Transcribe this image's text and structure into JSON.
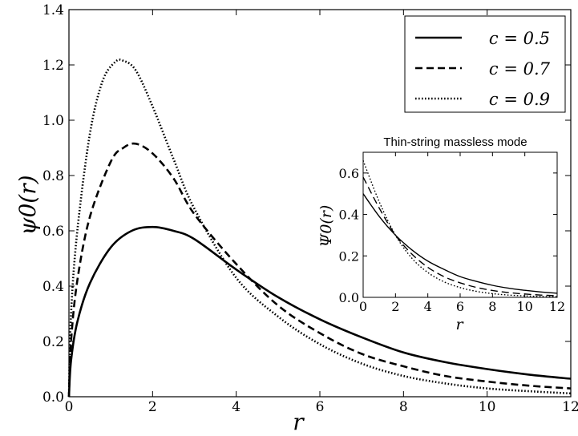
{
  "chart_data": [
    {
      "type": "line",
      "xlabel": "r",
      "ylabel": "ψ0(r)",
      "xlim": [
        0,
        12
      ],
      "ylim": [
        0,
        1.4
      ],
      "xticks": [
        "0",
        "2",
        "4",
        "6",
        "8",
        "10",
        "12"
      ],
      "yticks": [
        "0.0",
        "0.2",
        "0.4",
        "0.6",
        "0.8",
        "1.0",
        "1.2",
        "1.4"
      ],
      "grid": false,
      "legend": "top-right",
      "series": [
        {
          "name": "c = 0.5",
          "style": "solid",
          "x": [
            0,
            0.05,
            0.2,
            0.5,
            1,
            1.5,
            2,
            2.5,
            3,
            4,
            5,
            6,
            7,
            8,
            9,
            10,
            11,
            12
          ],
          "y": [
            0,
            0.13,
            0.27,
            0.41,
            0.54,
            0.6,
            0.614,
            0.6,
            0.57,
            0.46,
            0.36,
            0.28,
            0.215,
            0.16,
            0.125,
            0.1,
            0.08,
            0.065
          ]
        },
        {
          "name": "c = 0.7",
          "style": "dashed",
          "x": [
            0,
            0.05,
            0.2,
            0.5,
            1,
            1.3,
            1.6,
            2,
            2.5,
            3,
            4,
            5,
            6,
            7,
            8,
            9,
            10,
            11,
            12
          ],
          "y": [
            0,
            0.2,
            0.42,
            0.65,
            0.85,
            0.9,
            0.915,
            0.88,
            0.79,
            0.66,
            0.48,
            0.33,
            0.23,
            0.155,
            0.11,
            0.075,
            0.055,
            0.04,
            0.03
          ]
        },
        {
          "name": "c = 0.9",
          "style": "dotted",
          "x": [
            0,
            0.05,
            0.2,
            0.5,
            0.8,
            1.1,
            1.3,
            1.6,
            2,
            2.5,
            3,
            4,
            5,
            6,
            7,
            8,
            9,
            10,
            11,
            12
          ],
          "y": [
            0,
            0.3,
            0.6,
            0.95,
            1.14,
            1.21,
            1.215,
            1.18,
            1.05,
            0.86,
            0.68,
            0.43,
            0.29,
            0.19,
            0.12,
            0.075,
            0.048,
            0.03,
            0.02,
            0.012
          ]
        }
      ]
    },
    {
      "type": "line",
      "title": "Thin-string massless mode",
      "xlabel": "r",
      "ylabel": "Ψ0(r)",
      "xlim": [
        0,
        12
      ],
      "ylim": [
        0,
        0.7
      ],
      "xticks": [
        "0",
        "2",
        "4",
        "6",
        "8",
        "10",
        "12"
      ],
      "yticks": [
        "0.0",
        "0.2",
        "0.4",
        "0.6"
      ],
      "grid": false,
      "series": [
        {
          "style": "solid",
          "x": [
            0,
            1,
            2,
            3,
            4,
            5,
            6,
            7,
            8,
            9,
            10,
            11,
            12
          ],
          "y": [
            0.5,
            0.39,
            0.3,
            0.23,
            0.175,
            0.135,
            0.1,
            0.077,
            0.058,
            0.044,
            0.034,
            0.026,
            0.02
          ]
        },
        {
          "style": "dashed",
          "x": [
            0,
            1,
            2,
            3,
            4,
            5,
            6,
            7,
            8,
            9,
            10,
            11,
            12
          ],
          "y": [
            0.58,
            0.43,
            0.3,
            0.21,
            0.145,
            0.1,
            0.07,
            0.048,
            0.033,
            0.023,
            0.016,
            0.011,
            0.008
          ]
        },
        {
          "style": "dotted",
          "x": [
            0,
            1,
            2,
            3,
            4,
            5,
            6,
            7,
            8,
            9,
            10,
            11,
            12
          ],
          "y": [
            0.66,
            0.46,
            0.3,
            0.19,
            0.12,
            0.075,
            0.047,
            0.029,
            0.018,
            0.011,
            0.007,
            0.004,
            0.003
          ]
        }
      ]
    }
  ]
}
